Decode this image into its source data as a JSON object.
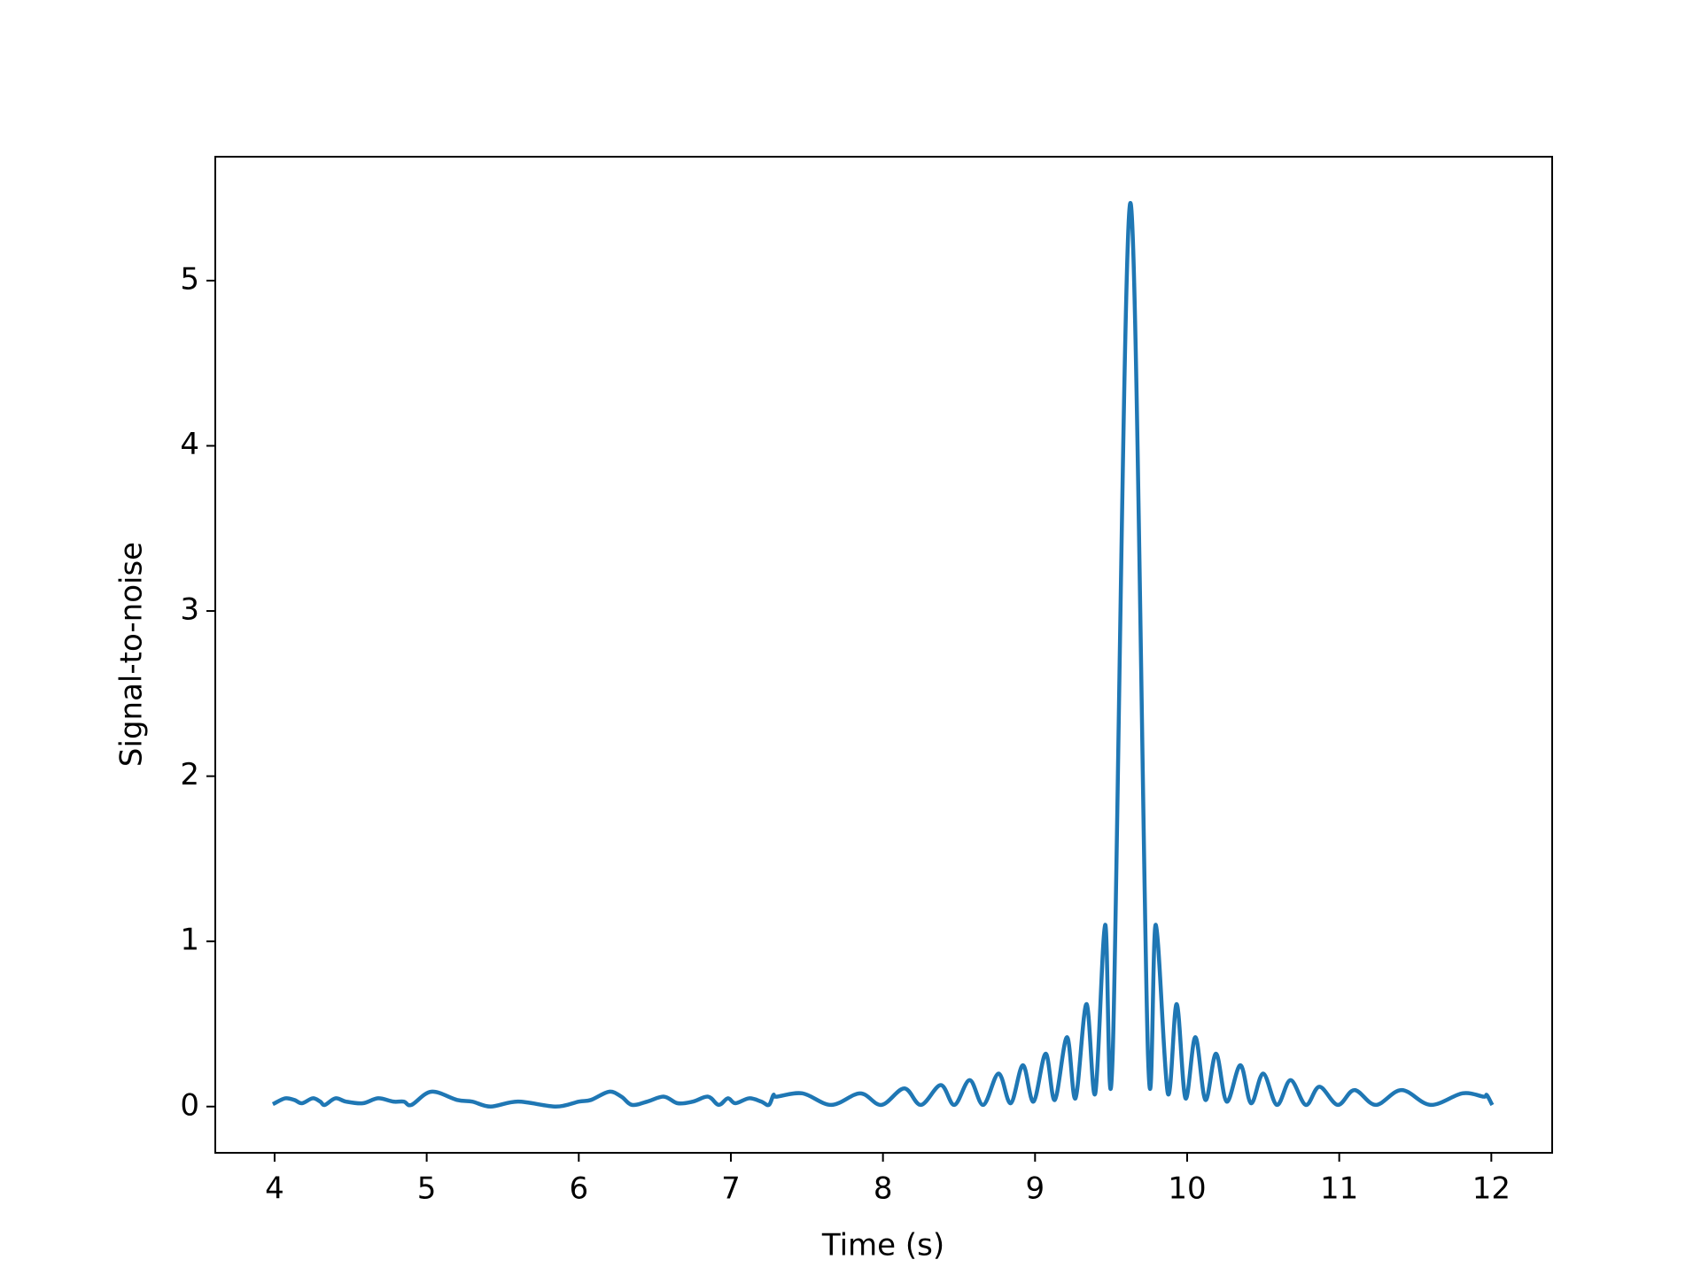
{
  "chart_data": {
    "type": "line",
    "xlabel": "Time (s)",
    "ylabel": "Signal-to-noise",
    "x": [
      4.0,
      4.07,
      4.13,
      4.18,
      4.25,
      4.3,
      4.33,
      4.4,
      4.47,
      4.58,
      4.68,
      4.78,
      4.85,
      4.9,
      5.03,
      5.2,
      5.3,
      5.42,
      5.6,
      5.85,
      6.0,
      6.08,
      6.2,
      6.28,
      6.35,
      6.45,
      6.56,
      6.65,
      6.75,
      6.85,
      6.92,
      6.98,
      7.03,
      7.12,
      7.2,
      7.25,
      7.28,
      7.3,
      7.47,
      7.66,
      7.85,
      7.99,
      8.14,
      8.25,
      8.38,
      8.47,
      8.57,
      8.66,
      8.76,
      8.84,
      8.92,
      8.99,
      9.07,
      9.13,
      9.21,
      9.266,
      9.338,
      9.396,
      9.461,
      9.51,
      9.627,
      9.743,
      9.794,
      9.873,
      9.931,
      9.989,
      10.054,
      10.12,
      10.19,
      10.26,
      10.35,
      10.42,
      10.5,
      10.59,
      10.68,
      10.78,
      10.87,
      10.99,
      11.1,
      11.24,
      11.41,
      11.6,
      11.81,
      11.95,
      11.97,
      12.0
    ],
    "series": [
      {
        "color": "#1f77b4",
        "values": [
          0.02,
          0.05,
          0.04,
          0.02,
          0.05,
          0.03,
          0.01,
          0.05,
          0.03,
          0.02,
          0.05,
          0.03,
          0.03,
          0.01,
          0.09,
          0.04,
          0.03,
          0.0,
          0.03,
          0.0,
          0.03,
          0.04,
          0.09,
          0.06,
          0.01,
          0.03,
          0.06,
          0.02,
          0.03,
          0.06,
          0.01,
          0.05,
          0.02,
          0.05,
          0.03,
          0.01,
          0.07,
          0.06,
          0.08,
          0.01,
          0.08,
          0.01,
          0.11,
          0.01,
          0.13,
          0.01,
          0.16,
          0.01,
          0.2,
          0.02,
          0.25,
          0.03,
          0.32,
          0.04,
          0.42,
          0.05,
          0.62,
          0.08,
          1.1,
          0.3,
          5.47,
          0.3,
          1.1,
          0.08,
          0.62,
          0.05,
          0.42,
          0.04,
          0.32,
          0.03,
          0.25,
          0.02,
          0.2,
          0.01,
          0.16,
          0.01,
          0.12,
          0.01,
          0.1,
          0.01,
          0.1,
          0.01,
          0.08,
          0.06,
          0.07,
          0.02
        ]
      }
    ],
    "xlim": [
      3.61,
      12.4
    ],
    "ylim": [
      -0.28,
      5.75
    ],
    "xticks": [
      4,
      5,
      6,
      7,
      8,
      9,
      10,
      11,
      12
    ],
    "yticks": [
      0,
      1,
      2,
      3,
      4,
      5
    ],
    "grid": false
  }
}
